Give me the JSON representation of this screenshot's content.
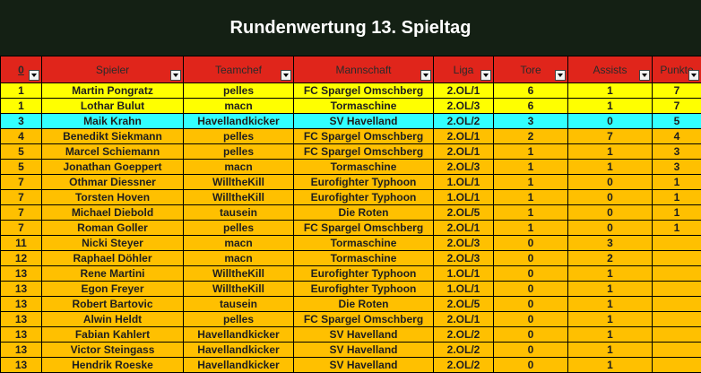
{
  "title": "Rundenwertung 13. Spieltag",
  "colors": {
    "title_bg": "#142014",
    "header_bg": "#e0251b",
    "row_orange": "#ffc000",
    "row_yellow": "#ffff00",
    "row_cyan": "#32ffff"
  },
  "headers": [
    "0",
    "Spieler",
    "Teamchef",
    "Mannschaft",
    "Liga",
    "Tore",
    "Assists",
    "Punkte"
  ],
  "filter_icon": "dropdown-arrow-icon",
  "rows": [
    {
      "rank": "1",
      "spieler": "Martin Pongratz",
      "teamchef": "pelles",
      "mannschaft": "FC Spargel Omschberg",
      "liga": "2.OL/1",
      "tore": "6",
      "assists": "1",
      "punkte": "7",
      "highlight": "yellow"
    },
    {
      "rank": "1",
      "spieler": "Lothar Bulut",
      "teamchef": "macn",
      "mannschaft": "Tormaschine",
      "liga": "2.OL/3",
      "tore": "6",
      "assists": "1",
      "punkte": "7",
      "highlight": "yellow"
    },
    {
      "rank": "3",
      "spieler": "Maik Krahn",
      "teamchef": "Havellandkicker",
      "mannschaft": "SV Havelland",
      "liga": "2.OL/2",
      "tore": "3",
      "assists": "0",
      "punkte": "5",
      "highlight": "cyan"
    },
    {
      "rank": "4",
      "spieler": "Benedikt Siekmann",
      "teamchef": "pelles",
      "mannschaft": "FC Spargel Omschberg",
      "liga": "2.OL/1",
      "tore": "2",
      "assists": "7",
      "punkte": "4",
      "highlight": "orange"
    },
    {
      "rank": "5",
      "spieler": "Marcel Schiemann",
      "teamchef": "pelles",
      "mannschaft": "FC Spargel Omschberg",
      "liga": "2.OL/1",
      "tore": "1",
      "assists": "1",
      "punkte": "3",
      "highlight": "orange"
    },
    {
      "rank": "5",
      "spieler": "Jonathan Goeppert",
      "teamchef": "macn",
      "mannschaft": "Tormaschine",
      "liga": "2.OL/3",
      "tore": "1",
      "assists": "1",
      "punkte": "3",
      "highlight": "orange"
    },
    {
      "rank": "7",
      "spieler": "Othmar Diessner",
      "teamchef": "WilltheKill",
      "mannschaft": "Eurofighter Typhoon",
      "liga": "1.OL/1",
      "tore": "1",
      "assists": "0",
      "punkte": "1",
      "highlight": "orange"
    },
    {
      "rank": "7",
      "spieler": "Torsten Hoven",
      "teamchef": "WilltheKill",
      "mannschaft": "Eurofighter Typhoon",
      "liga": "1.OL/1",
      "tore": "1",
      "assists": "0",
      "punkte": "1",
      "highlight": "orange"
    },
    {
      "rank": "7",
      "spieler": "Michael Diebold",
      "teamchef": "tausein",
      "mannschaft": "Die Roten",
      "liga": "2.OL/5",
      "tore": "1",
      "assists": "0",
      "punkte": "1",
      "highlight": "orange"
    },
    {
      "rank": "7",
      "spieler": "Roman Goller",
      "teamchef": "pelles",
      "mannschaft": "FC Spargel Omschberg",
      "liga": "2.OL/1",
      "tore": "1",
      "assists": "0",
      "punkte": "1",
      "highlight": "orange"
    },
    {
      "rank": "11",
      "spieler": "Nicki Steyer",
      "teamchef": "macn",
      "mannschaft": "Tormaschine",
      "liga": "2.OL/3",
      "tore": "0",
      "assists": "3",
      "punkte": "",
      "highlight": "orange"
    },
    {
      "rank": "12",
      "spieler": "Raphael Döhler",
      "teamchef": "macn",
      "mannschaft": "Tormaschine",
      "liga": "2.OL/3",
      "tore": "0",
      "assists": "2",
      "punkte": "",
      "highlight": "orange"
    },
    {
      "rank": "13",
      "spieler": "Rene Martini",
      "teamchef": "WilltheKill",
      "mannschaft": "Eurofighter Typhoon",
      "liga": "1.OL/1",
      "tore": "0",
      "assists": "1",
      "punkte": "",
      "highlight": "orange"
    },
    {
      "rank": "13",
      "spieler": "Egon Freyer",
      "teamchef": "WilltheKill",
      "mannschaft": "Eurofighter Typhoon",
      "liga": "1.OL/1",
      "tore": "0",
      "assists": "1",
      "punkte": "",
      "highlight": "orange"
    },
    {
      "rank": "13",
      "spieler": "Robert Bartovic",
      "teamchef": "tausein",
      "mannschaft": "Die Roten",
      "liga": "2.OL/5",
      "tore": "0",
      "assists": "1",
      "punkte": "",
      "highlight": "orange"
    },
    {
      "rank": "13",
      "spieler": "Alwin Heldt",
      "teamchef": "pelles",
      "mannschaft": "FC Spargel Omschberg",
      "liga": "2.OL/1",
      "tore": "0",
      "assists": "1",
      "punkte": "",
      "highlight": "orange"
    },
    {
      "rank": "13",
      "spieler": "Fabian Kahlert",
      "teamchef": "Havellandkicker",
      "mannschaft": "SV Havelland",
      "liga": "2.OL/2",
      "tore": "0",
      "assists": "1",
      "punkte": "",
      "highlight": "orange"
    },
    {
      "rank": "13",
      "spieler": "Victor Steingass",
      "teamchef": "Havellandkicker",
      "mannschaft": "SV Havelland",
      "liga": "2.OL/2",
      "tore": "0",
      "assists": "1",
      "punkte": "",
      "highlight": "orange"
    },
    {
      "rank": "13",
      "spieler": "Hendrik Roeske",
      "teamchef": "Havellandkicker",
      "mannschaft": "SV Havelland",
      "liga": "2.OL/2",
      "tore": "0",
      "assists": "1",
      "punkte": "",
      "highlight": "orange"
    }
  ]
}
